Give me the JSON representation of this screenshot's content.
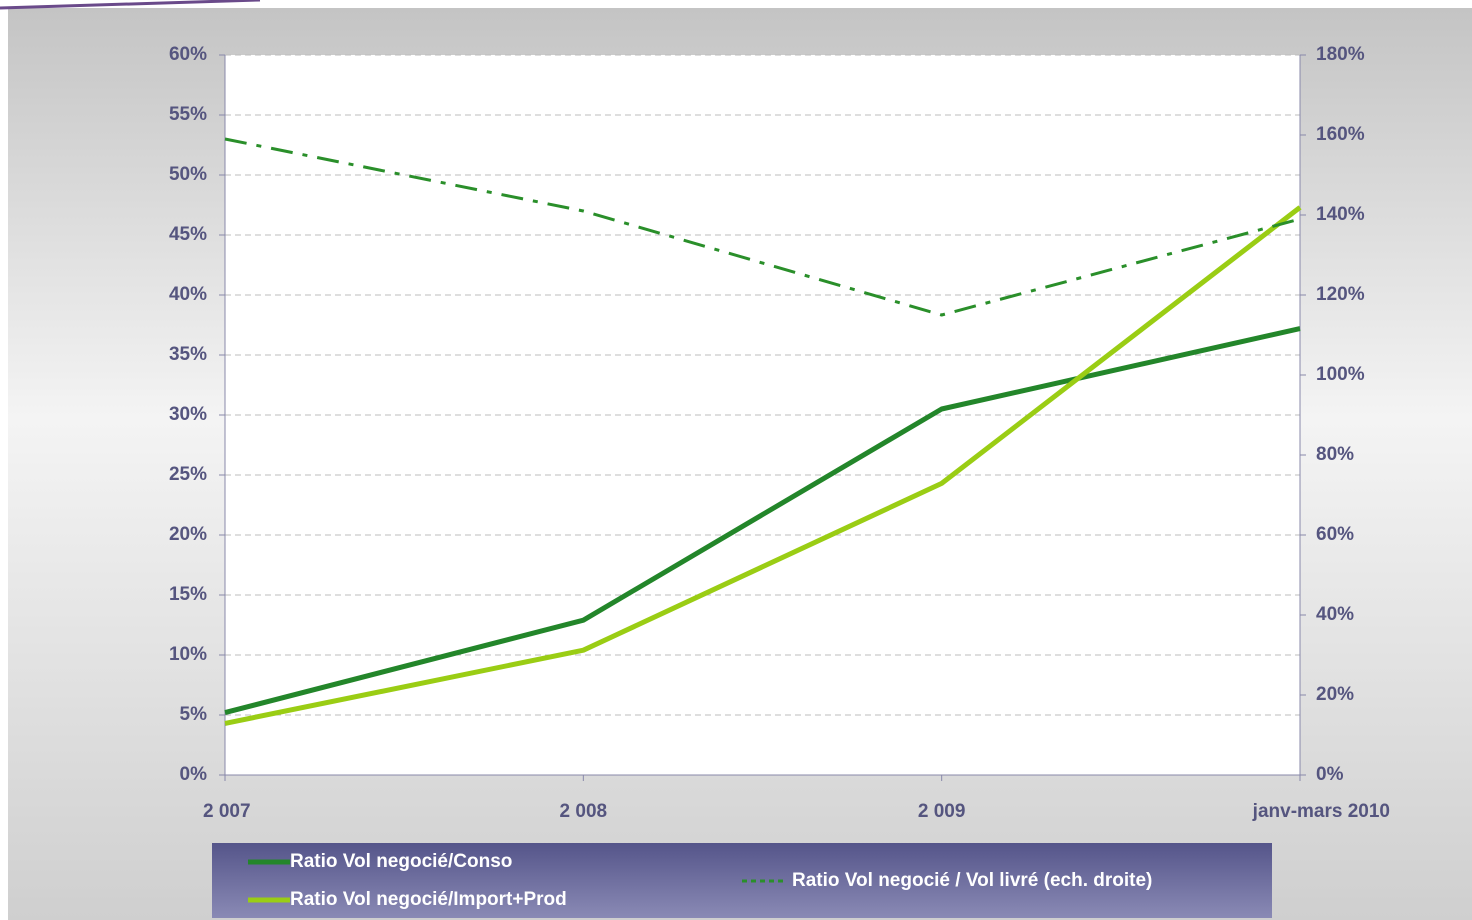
{
  "chart_data": {
    "type": "line",
    "categories": [
      "2 007",
      "2 008",
      "2 009",
      "janv-mars 2010"
    ],
    "series": [
      {
        "name": "Ratio Vol negocié/Conso",
        "color": "#23862a",
        "values": [
          5.2,
          12.9,
          30.5,
          37.2
        ]
      },
      {
        "name": "Ratio Vol negocié/Import+Prod",
        "color": "#9acd14",
        "values": [
          4.3,
          10.4,
          24.3,
          47.3
        ]
      },
      {
        "name": "Ratio Vol negocié / Vol livré (ech. droite)",
        "color": "#2a8f2a",
        "dash": "dash-dot",
        "axis": "y2",
        "values": [
          159,
          141,
          115,
          139
        ]
      }
    ],
    "ylim": [
      0,
      60
    ],
    "yticks": [
      {
        "value": 0,
        "label": "0%"
      },
      {
        "value": 5,
        "label": "5%"
      },
      {
        "value": 10,
        "label": "10%"
      },
      {
        "value": 15,
        "label": "15%"
      },
      {
        "value": 20,
        "label": "20%"
      },
      {
        "value": 25,
        "label": "25%"
      },
      {
        "value": 30,
        "label": "30%"
      },
      {
        "value": 35,
        "label": "35%"
      },
      {
        "value": 40,
        "label": "40%"
      },
      {
        "value": 45,
        "label": "45%"
      },
      {
        "value": 50,
        "label": "50%"
      },
      {
        "value": 55,
        "label": "55%"
      },
      {
        "value": 60,
        "label": "60%"
      }
    ],
    "y2lim": [
      0,
      180
    ],
    "y2ticks": [
      {
        "value": 0,
        "label": "0%"
      },
      {
        "value": 20,
        "label": "20%"
      },
      {
        "value": 40,
        "label": "40%"
      },
      {
        "value": 60,
        "label": "60%"
      },
      {
        "value": 80,
        "label": "80%"
      },
      {
        "value": 100,
        "label": "100%"
      },
      {
        "value": 120,
        "label": "120%"
      },
      {
        "value": 140,
        "label": "140%"
      },
      {
        "value": 160,
        "label": "160%"
      },
      {
        "value": 180,
        "label": "180%"
      }
    ],
    "grid": true
  }
}
